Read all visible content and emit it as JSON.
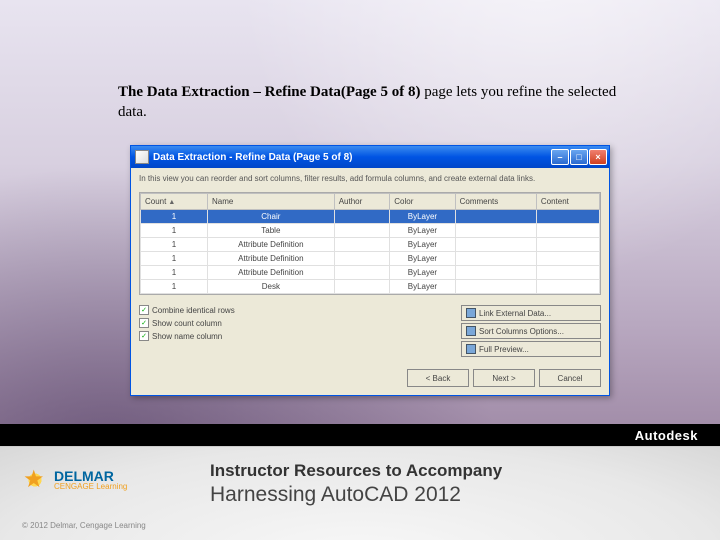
{
  "intro": {
    "bold": "The Data Extraction – Refine Data(Page 5 of 8)",
    "rest": " page lets you refine the selected data."
  },
  "dialog": {
    "title": "Data Extraction - Refine Data (Page 5 of 8)",
    "instruction": "In this view you can reorder and sort columns, filter results, add formula columns, and create external data links.",
    "columns": [
      "Count",
      "Name",
      "Author",
      "Color",
      "Comments",
      "Content"
    ],
    "rows": [
      {
        "count": "1",
        "name": "Chair",
        "author": "",
        "color": "ByLayer",
        "comments": "",
        "content": ""
      },
      {
        "count": "1",
        "name": "Table",
        "author": "",
        "color": "ByLayer",
        "comments": "",
        "content": ""
      },
      {
        "count": "1",
        "name": "Attribute Definition",
        "author": "",
        "color": "ByLayer",
        "comments": "",
        "content": ""
      },
      {
        "count": "1",
        "name": "Attribute Definition",
        "author": "",
        "color": "ByLayer",
        "comments": "",
        "content": ""
      },
      {
        "count": "1",
        "name": "Attribute Definition",
        "author": "",
        "color": "ByLayer",
        "comments": "",
        "content": ""
      },
      {
        "count": "1",
        "name": "Desk",
        "author": "",
        "color": "ByLayer",
        "comments": "",
        "content": ""
      }
    ],
    "checks": [
      {
        "checked": true,
        "label": "Combine identical rows"
      },
      {
        "checked": true,
        "label": "Show count column"
      },
      {
        "checked": true,
        "label": "Show name column"
      }
    ],
    "sideButtons": [
      "Link External Data...",
      "Sort Columns Options...",
      "Full Preview..."
    ],
    "navButtons": [
      "< Back",
      "Next >",
      "Cancel"
    ]
  },
  "footer": {
    "brand": "DELMAR",
    "brandSub": "CENGAGE Learning",
    "copyright": "© 2012 Delmar, Cengage Learning",
    "line1": "Instructor Resources to Accompany",
    "line2": "Harnessing AutoCAD 2012",
    "autodesk": "Autodesk"
  },
  "colors": {
    "titlebar": "#0054e3",
    "selection": "#316ac5",
    "dialogBg": "#ece9d8"
  }
}
